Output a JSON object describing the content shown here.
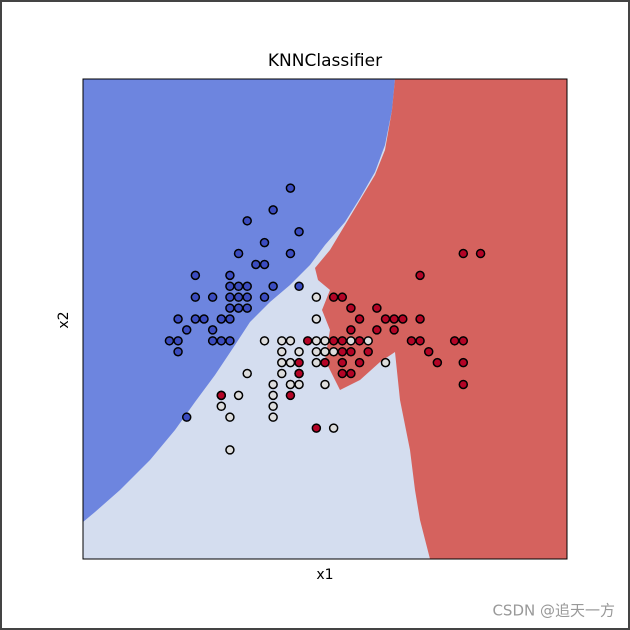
{
  "chart_data": {
    "type": "scatter",
    "title": "KNNClassifier",
    "x_label": "x1",
    "y_label": "x2",
    "xlim": [
      3.3,
      8.9
    ],
    "ylim": [
      1.0,
      5.4
    ],
    "series": [
      {
        "color": "#3b4cc0",
        "x": [
          5.7,
          5.2,
          5.5,
          5.8,
          5.1,
          5.4,
          5.0,
          4.6,
          5.3,
          5.4,
          5.7,
          5.0,
          5.1,
          5.2,
          4.8,
          4.6,
          5.0,
          5.1,
          5.2,
          5.4,
          5.5,
          5.8,
          5.0,
          5.1,
          5.2,
          4.4,
          4.6,
          4.7,
          4.9,
          5.0,
          4.5,
          4.8,
          4.3,
          4.4,
          4.8,
          4.9,
          5.0,
          4.4,
          4.5
        ],
        "values": [
          4.4,
          4.1,
          4.2,
          4.0,
          3.8,
          3.9,
          3.6,
          3.6,
          3.7,
          3.7,
          3.8,
          3.5,
          3.5,
          3.5,
          3.4,
          3.4,
          3.4,
          3.4,
          3.4,
          3.4,
          3.5,
          3.5,
          3.3,
          3.3,
          3.3,
          3.2,
          3.2,
          3.2,
          3.2,
          3.2,
          3.1,
          3.1,
          3.0,
          3.0,
          3.0,
          3.0,
          3.0,
          2.9,
          2.3
        ]
      },
      {
        "color": "#dddddd",
        "x": [
          6.0,
          6.0,
          5.4,
          5.6,
          5.7,
          6.0,
          6.1,
          5.6,
          5.8,
          6.0,
          6.1,
          6.2,
          6.4,
          6.6,
          5.6,
          5.7,
          6.0,
          6.8,
          5.2,
          5.6,
          5.8,
          5.5,
          5.7,
          5.8,
          6.1,
          4.9,
          5.1,
          5.5,
          4.9,
          5.5,
          5.5,
          5.0,
          6.2,
          5.0
        ],
        "values": [
          3.4,
          3.2,
          3.0,
          3.0,
          3.0,
          3.0,
          3.0,
          2.9,
          2.9,
          2.9,
          2.9,
          2.9,
          3.0,
          3.0,
          2.8,
          2.8,
          2.8,
          2.8,
          2.7,
          2.7,
          2.7,
          2.6,
          2.6,
          2.6,
          2.6,
          2.5,
          2.5,
          2.5,
          2.4,
          2.4,
          2.3,
          2.3,
          2.2,
          2.0
        ]
      },
      {
        "color": "#b40426",
        "x": [
          7.7,
          7.9,
          7.2,
          6.2,
          6.3,
          6.4,
          6.7,
          6.8,
          6.9,
          7.0,
          7.2,
          6.5,
          6.4,
          6.7,
          6.9,
          5.9,
          6.2,
          6.3,
          6.5,
          7.1,
          7.2,
          7.6,
          7.7,
          6.3,
          6.4,
          6.6,
          7.3,
          5.8,
          6.1,
          6.3,
          6.5,
          7.4,
          7.7,
          5.8,
          6.3,
          6.4,
          7.7,
          4.9,
          5.7,
          6.0
        ],
        "values": [
          3.8,
          3.8,
          3.6,
          3.4,
          3.4,
          3.3,
          3.3,
          3.2,
          3.2,
          3.2,
          3.2,
          3.2,
          3.1,
          3.1,
          3.1,
          3.0,
          3.0,
          3.0,
          3.0,
          3.0,
          3.0,
          3.0,
          3.0,
          2.9,
          2.9,
          2.9,
          2.9,
          2.8,
          2.8,
          2.8,
          2.8,
          2.8,
          2.8,
          2.7,
          2.7,
          2.7,
          2.6,
          2.5,
          2.5,
          2.2
        ]
      }
    ]
  },
  "watermark": "CSDN @追天一方"
}
